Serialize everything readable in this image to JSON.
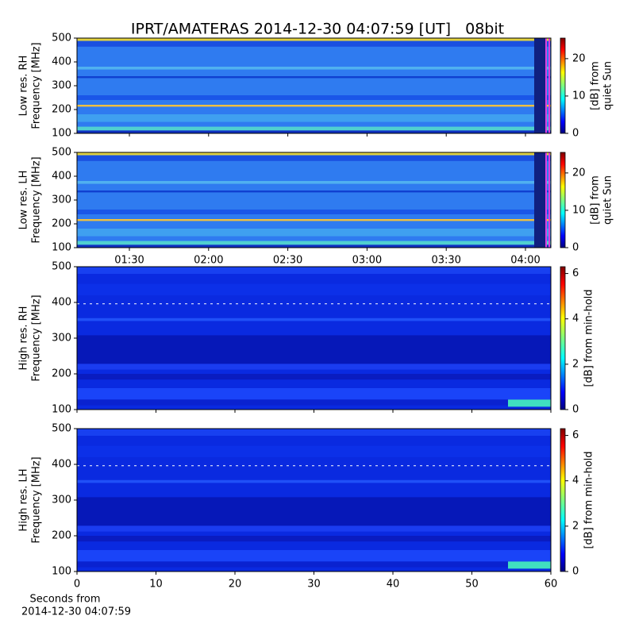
{
  "chart_data": [
    {
      "type": "heatmap",
      "title": "IPRT/AMATERAS 2014-12-30 04:07:59 [UT]   08bit",
      "ylabel": [
        "Low res. RH",
        "Frequency [MHz]"
      ],
      "ylim": [
        100,
        500
      ],
      "yticks": [
        100,
        200,
        300,
        400,
        500
      ],
      "colorbar_label": [
        "[dB] from",
        "quiet Sun"
      ],
      "clim": [
        0,
        25.5
      ],
      "cticks": [
        0,
        10,
        20
      ],
      "colormap": "jet"
    },
    {
      "type": "heatmap",
      "ylabel": [
        "Low res. LH",
        "Frequency [MHz]"
      ],
      "ylim": [
        100,
        500
      ],
      "yticks": [
        100,
        200,
        300,
        400,
        500
      ],
      "xticks": [
        "01:30",
        "02:00",
        "02:30",
        "03:00",
        "03:30",
        "04:00"
      ],
      "colorbar_label": [
        "[dB] from",
        "quiet Sun"
      ],
      "clim": [
        0,
        25.5
      ],
      "cticks": [
        0,
        10,
        20
      ],
      "colormap": "jet"
    },
    {
      "type": "heatmap",
      "ylabel": [
        "High res. RH",
        "Frequency [MHz]"
      ],
      "ylim": [
        100,
        500
      ],
      "yticks": [
        100,
        200,
        300,
        400,
        500
      ],
      "colorbar_label": [
        "[dB] from min-hold"
      ],
      "clim": [
        0,
        6.3
      ],
      "cticks": [
        0,
        2,
        4,
        6
      ],
      "colormap": "jet"
    },
    {
      "type": "heatmap",
      "ylabel": [
        "High res. LH",
        "Frequency [MHz]"
      ],
      "ylim": [
        100,
        500
      ],
      "yticks": [
        100,
        200,
        300,
        400,
        500
      ],
      "xlim": [
        0,
        60
      ],
      "xticks": [
        0,
        10,
        20,
        30,
        40,
        50,
        60
      ],
      "xlabel": [
        "Seconds from",
        "2014-12-30 04:07:59"
      ],
      "colorbar_label": [
        "[dB] from min-hold"
      ],
      "clim": [
        0,
        6.3
      ],
      "cticks": [
        0,
        2,
        4,
        6
      ],
      "colormap": "jet"
    }
  ]
}
